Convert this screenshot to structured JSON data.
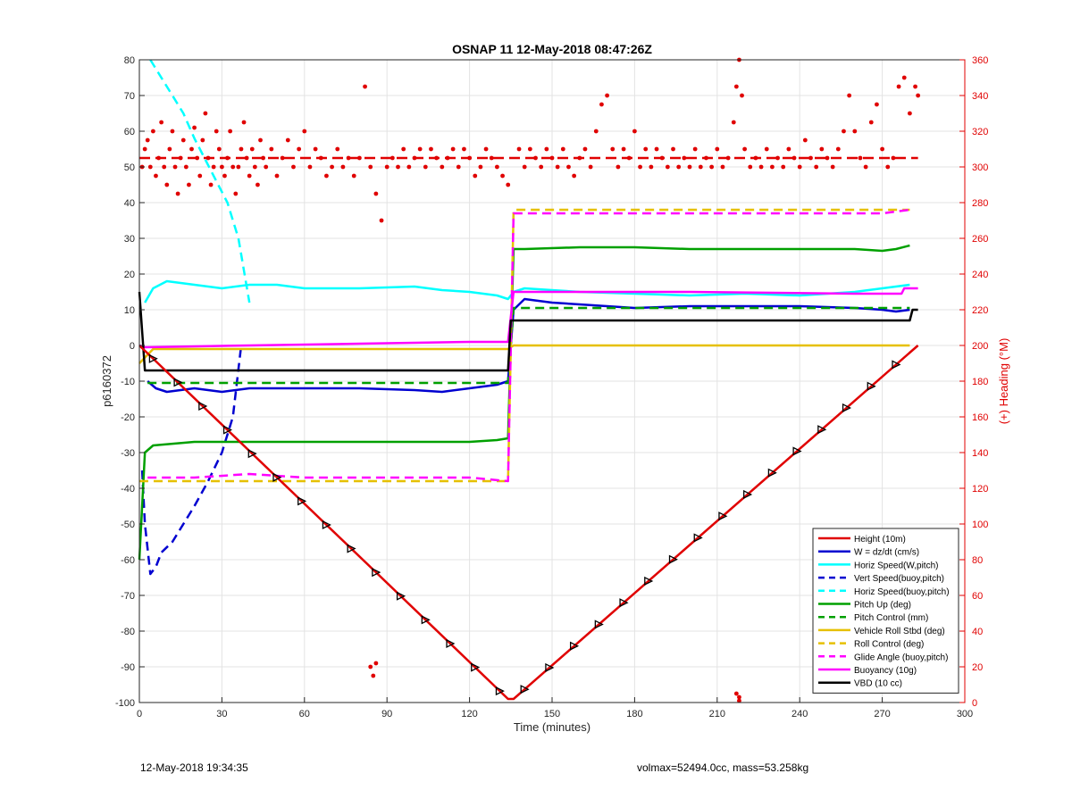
{
  "chart_data": {
    "type": "line",
    "title": "OSNAP 11 12-May-2018 08:47:26Z",
    "xlabel": "Time (minutes)",
    "ylabel_left": "p6160372",
    "ylabel_right": "(+) Heading (°M)",
    "xlim": [
      0,
      300
    ],
    "ylim_left": [
      -100,
      80
    ],
    "ylim_right": [
      0,
      360
    ],
    "x_ticks": [
      0,
      30,
      60,
      90,
      120,
      150,
      180,
      210,
      240,
      270,
      300
    ],
    "y_ticks_left": [
      80,
      70,
      60,
      50,
      40,
      30,
      20,
      10,
      0,
      -10,
      -20,
      -30,
      -40,
      -50,
      -60,
      -70,
      -80,
      -90,
      -100
    ],
    "y_ticks_right": [
      360,
      340,
      320,
      300,
      280,
      260,
      240,
      220,
      200,
      180,
      160,
      140,
      120,
      100,
      80,
      60,
      40,
      20,
      0
    ],
    "grid": true,
    "legend_position": "bottom-right",
    "series": [
      {
        "name": "Height (10m)",
        "color": "#e00000",
        "style": "solid",
        "x": [
          0,
          134,
          136,
          280,
          283
        ],
        "y": [
          0,
          -99,
          -99,
          -2,
          0
        ]
      },
      {
        "name": "W = dz/dt (cm/s)",
        "color": "#0000d0",
        "style": "solid",
        "x": [
          3,
          6,
          10,
          20,
          30,
          40,
          60,
          80,
          100,
          110,
          120,
          130,
          134,
          136,
          140,
          150,
          160,
          180,
          200,
          220,
          240,
          260,
          270,
          275,
          280
        ],
        "y": [
          -10,
          -12,
          -13,
          -12,
          -13,
          -12,
          -12,
          -12,
          -12.5,
          -13,
          -12,
          -11,
          -10,
          10,
          13,
          12,
          11.5,
          10.5,
          11,
          11,
          11,
          10.5,
          10,
          9.5,
          10
        ]
      },
      {
        "name": "Horiz Speed(W,pitch)",
        "color": "#00ffff",
        "style": "solid",
        "x": [
          2,
          5,
          10,
          20,
          30,
          40,
          50,
          60,
          80,
          100,
          110,
          120,
          130,
          134,
          136,
          140,
          150,
          160,
          180,
          200,
          220,
          240,
          260,
          270,
          280
        ],
        "y": [
          12,
          16,
          18,
          17,
          16,
          17,
          17,
          16,
          16,
          16.5,
          15.5,
          15,
          14,
          13,
          15,
          16,
          15.5,
          15,
          14.5,
          14,
          14.5,
          14,
          15,
          16,
          17
        ]
      },
      {
        "name": "Vert Speed(buoy,pitch)",
        "color": "#0000d0",
        "style": "dashed",
        "x": [
          1,
          2,
          4,
          6,
          8,
          12,
          16,
          20,
          25,
          30,
          34,
          37
        ],
        "y": [
          -35,
          -50,
          -64,
          -62,
          -58,
          -55,
          -50,
          -45,
          -38,
          -30,
          -20,
          0
        ]
      },
      {
        "name": "Horiz Speed(buoy,pitch)",
        "color": "#00ffff",
        "style": "dashed",
        "x": [
          4,
          8,
          12,
          16,
          20,
          24,
          28,
          32,
          36,
          40
        ],
        "y": [
          80,
          75,
          70,
          65,
          58,
          52,
          46,
          40,
          30,
          12
        ]
      },
      {
        "name": "Pitch Up (deg)",
        "color": "#00a000",
        "style": "solid",
        "x": [
          0,
          2,
          5,
          20,
          40,
          60,
          80,
          100,
          120,
          130,
          134,
          136,
          140,
          160,
          180,
          200,
          220,
          240,
          260,
          270,
          275,
          280
        ],
        "y": [
          -60,
          -30,
          -28,
          -27,
          -27,
          -27,
          -27,
          -27,
          -27,
          -26.5,
          -26,
          27,
          27,
          27.5,
          27.5,
          27,
          27,
          27,
          27,
          26.5,
          27,
          28
        ]
      },
      {
        "name": "Pitch Control (mm)",
        "color": "#00a000",
        "style": "dashed",
        "x": [
          3,
          134,
          136,
          280
        ],
        "y": [
          -10.5,
          -10.5,
          10.5,
          10.5
        ]
      },
      {
        "name": "Vehicle Roll Stbd (deg)",
        "color": "#e6c000",
        "style": "solid",
        "x": [
          0,
          5,
          20,
          40,
          60,
          80,
          100,
          120,
          134,
          136,
          150,
          180,
          210,
          240,
          270,
          280
        ],
        "y": [
          -5,
          -1,
          -1,
          -1,
          -1,
          -1,
          -1,
          -1,
          -1,
          0,
          0,
          0,
          0,
          0,
          0,
          0
        ]
      },
      {
        "name": "Roll Control (deg)",
        "color": "#e6c000",
        "style": "dashed",
        "x": [
          0,
          134,
          136,
          280
        ],
        "y": [
          -38,
          -38,
          38,
          38
        ]
      },
      {
        "name": "Glide Angle (buoy,pitch)",
        "color": "#ff00ff",
        "style": "dashed",
        "x": [
          3,
          20,
          40,
          60,
          80,
          100,
          120,
          134,
          136,
          160,
          200,
          240,
          270,
          280
        ],
        "y": [
          -37,
          -37,
          -36,
          -37,
          -37,
          -37,
          -37,
          -38,
          37,
          37,
          37,
          37,
          37,
          38
        ]
      },
      {
        "name": "Buoyancy (10g)",
        "color": "#ff00ff",
        "style": "solid",
        "x": [
          0,
          2,
          40,
          80,
          120,
          134,
          136,
          200,
          260,
          277,
          278,
          283
        ],
        "y": [
          0,
          -0.5,
          0,
          0.5,
          1,
          1,
          15,
          15,
          14.5,
          14.5,
          16,
          16
        ]
      },
      {
        "name": "VBD (10 cc)",
        "color": "#000000",
        "style": "solid",
        "x": [
          0,
          2,
          134,
          135,
          280,
          281,
          283
        ],
        "y": [
          15,
          -7,
          -7,
          7,
          7,
          10,
          10
        ]
      }
    ],
    "reference_lines": [
      {
        "axis": "right",
        "value": 305,
        "color": "#e00000",
        "style": "dashed"
      }
    ],
    "heading_scatter": {
      "color": "#e00000",
      "axis": "right",
      "points": [
        [
          1,
          300
        ],
        [
          2,
          310
        ],
        [
          3,
          315
        ],
        [
          4,
          300
        ],
        [
          5,
          320
        ],
        [
          6,
          295
        ],
        [
          7,
          305
        ],
        [
          8,
          325
        ],
        [
          9,
          300
        ],
        [
          10,
          290
        ],
        [
          11,
          310
        ],
        [
          12,
          320
        ],
        [
          13,
          300
        ],
        [
          14,
          285
        ],
        [
          15,
          305
        ],
        [
          16,
          315
        ],
        [
          17,
          300
        ],
        [
          18,
          290
        ],
        [
          19,
          310
        ],
        [
          20,
          322
        ],
        [
          21,
          305
        ],
        [
          22,
          295
        ],
        [
          23,
          315
        ],
        [
          24,
          330
        ],
        [
          25,
          305
        ],
        [
          26,
          290
        ],
        [
          27,
          300
        ],
        [
          28,
          320
        ],
        [
          29,
          310
        ],
        [
          30,
          300
        ],
        [
          31,
          295
        ],
        [
          32,
          305
        ],
        [
          33,
          320
        ],
        [
          34,
          300
        ],
        [
          35,
          285
        ],
        [
          36,
          300
        ],
        [
          37,
          310
        ],
        [
          38,
          325
        ],
        [
          39,
          305
        ],
        [
          40,
          295
        ],
        [
          41,
          310
        ],
        [
          42,
          300
        ],
        [
          43,
          290
        ],
        [
          44,
          315
        ],
        [
          45,
          305
        ],
        [
          46,
          300
        ],
        [
          48,
          310
        ],
        [
          50,
          295
        ],
        [
          52,
          305
        ],
        [
          54,
          315
        ],
        [
          56,
          300
        ],
        [
          58,
          310
        ],
        [
          60,
          320
        ],
        [
          62,
          300
        ],
        [
          64,
          310
        ],
        [
          66,
          305
        ],
        [
          68,
          295
        ],
        [
          70,
          300
        ],
        [
          72,
          310
        ],
        [
          74,
          300
        ],
        [
          76,
          305
        ],
        [
          78,
          295
        ],
        [
          80,
          305
        ],
        [
          82,
          345
        ],
        [
          84,
          300
        ],
        [
          86,
          285
        ],
        [
          88,
          270
        ],
        [
          90,
          300
        ],
        [
          92,
          305
        ],
        [
          94,
          300
        ],
        [
          96,
          310
        ],
        [
          98,
          300
        ],
        [
          100,
          305
        ],
        [
          102,
          310
        ],
        [
          104,
          300
        ],
        [
          106,
          310
        ],
        [
          108,
          305
        ],
        [
          110,
          300
        ],
        [
          112,
          305
        ],
        [
          114,
          310
        ],
        [
          116,
          300
        ],
        [
          118,
          310
        ],
        [
          120,
          305
        ],
        [
          122,
          295
        ],
        [
          124,
          300
        ],
        [
          126,
          310
        ],
        [
          128,
          305
        ],
        [
          130,
          300
        ],
        [
          132,
          295
        ],
        [
          134,
          290
        ],
        [
          138,
          310
        ],
        [
          140,
          300
        ],
        [
          142,
          310
        ],
        [
          144,
          305
        ],
        [
          146,
          300
        ],
        [
          148,
          310
        ],
        [
          150,
          305
        ],
        [
          152,
          300
        ],
        [
          154,
          310
        ],
        [
          156,
          300
        ],
        [
          158,
          295
        ],
        [
          160,
          305
        ],
        [
          162,
          310
        ],
        [
          164,
          300
        ],
        [
          166,
          320
        ],
        [
          168,
          335
        ],
        [
          170,
          340
        ],
        [
          172,
          310
        ],
        [
          174,
          300
        ],
        [
          176,
          310
        ],
        [
          178,
          305
        ],
        [
          180,
          320
        ],
        [
          182,
          300
        ],
        [
          184,
          310
        ],
        [
          186,
          300
        ],
        [
          188,
          310
        ],
        [
          190,
          305
        ],
        [
          192,
          300
        ],
        [
          194,
          310
        ],
        [
          196,
          300
        ],
        [
          198,
          305
        ],
        [
          200,
          300
        ],
        [
          202,
          310
        ],
        [
          204,
          300
        ],
        [
          206,
          305
        ],
        [
          208,
          300
        ],
        [
          210,
          310
        ],
        [
          212,
          300
        ],
        [
          214,
          305
        ],
        [
          216,
          325
        ],
        [
          217,
          345
        ],
        [
          218,
          360
        ],
        [
          219,
          340
        ],
        [
          220,
          310
        ],
        [
          222,
          300
        ],
        [
          224,
          305
        ],
        [
          226,
          300
        ],
        [
          228,
          310
        ],
        [
          230,
          300
        ],
        [
          232,
          305
        ],
        [
          234,
          300
        ],
        [
          236,
          310
        ],
        [
          238,
          305
        ],
        [
          240,
          300
        ],
        [
          242,
          315
        ],
        [
          244,
          305
        ],
        [
          246,
          300
        ],
        [
          248,
          310
        ],
        [
          250,
          305
        ],
        [
          252,
          300
        ],
        [
          254,
          310
        ],
        [
          256,
          320
        ],
        [
          258,
          340
        ],
        [
          260,
          320
        ],
        [
          262,
          305
        ],
        [
          264,
          300
        ],
        [
          266,
          325
        ],
        [
          268,
          335
        ],
        [
          270,
          310
        ],
        [
          272,
          300
        ],
        [
          274,
          305
        ],
        [
          276,
          345
        ],
        [
          278,
          350
        ],
        [
          280,
          330
        ],
        [
          282,
          345
        ],
        [
          283,
          340
        ],
        [
          84,
          20
        ],
        [
          85,
          15
        ],
        [
          86,
          22
        ],
        [
          217,
          5
        ],
        [
          218,
          3
        ],
        [
          218,
          1
        ]
      ]
    }
  },
  "footer": {
    "left": "12-May-2018 19:34:35",
    "right": "volmax=52494.0cc, mass=53.258kg"
  }
}
